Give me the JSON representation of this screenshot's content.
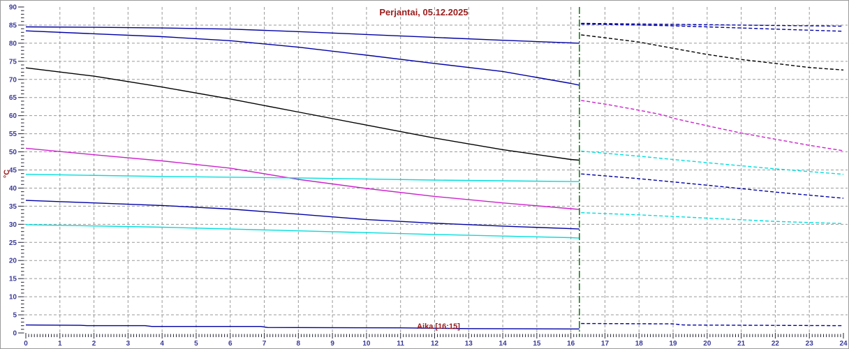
{
  "window": {
    "title": "Perjantai, 05.12.2025"
  },
  "colors": {
    "heading": "#9B1B1B",
    "axis_text": "#3A3A99",
    "tick": "#222233",
    "grid": "#9A9A9A",
    "navy": "#0000A5",
    "black": "#000000",
    "magenta": "#CC22CC",
    "cyan": "#00DEDE",
    "time_marker_green": "#1E7A1E",
    "border": "#999999",
    "background": "#FFFFFF"
  },
  "chart_data": {
    "type": "line",
    "title": "Perjantai, 05.12.2025",
    "xlabel": "",
    "ylabel": "°C",
    "x_axis": {
      "min": 0,
      "max": 24,
      "major_step": 1,
      "minor_step_minutes": 5,
      "tick_labels": [
        0,
        1,
        2,
        3,
        4,
        5,
        6,
        7,
        8,
        9,
        10,
        11,
        12,
        13,
        14,
        15,
        16,
        17,
        18,
        19,
        20,
        21,
        22,
        23,
        24
      ]
    },
    "y_axis": {
      "label": "°C",
      "min": 0,
      "max": 90,
      "major_step": 5,
      "minor_step": 1
    },
    "grid": true,
    "legend": false,
    "time_marker": {
      "label": "Aika [16:15]",
      "x": 16.25
    },
    "series": [
      {
        "name": "navy-upper-solid",
        "color": "navy",
        "style": "solid",
        "points": [
          [
            0,
            84.5
          ],
          [
            2,
            84.4
          ],
          [
            4,
            84.2
          ],
          [
            6,
            83.9
          ],
          [
            8,
            83.2
          ],
          [
            10,
            82.4
          ],
          [
            12,
            81.6
          ],
          [
            14,
            80.8
          ],
          [
            16,
            80.1
          ],
          [
            16.25,
            80.0
          ]
        ]
      },
      {
        "name": "navy-second-solid",
        "color": "navy",
        "style": "solid",
        "points": [
          [
            0,
            83.4
          ],
          [
            2,
            82.6
          ],
          [
            4,
            81.8
          ],
          [
            6,
            80.7
          ],
          [
            8,
            78.9
          ],
          [
            10,
            76.7
          ],
          [
            12,
            74.4
          ],
          [
            14,
            72.2
          ],
          [
            16,
            68.9
          ],
          [
            16.25,
            68.4
          ]
        ]
      },
      {
        "name": "black-solid",
        "color": "black",
        "style": "solid",
        "points": [
          [
            0,
            73.2
          ],
          [
            2,
            70.9
          ],
          [
            4,
            67.9
          ],
          [
            6,
            64.6
          ],
          [
            8,
            61.0
          ],
          [
            10,
            57.4
          ],
          [
            12,
            53.8
          ],
          [
            14,
            50.6
          ],
          [
            16,
            47.9
          ],
          [
            16.25,
            47.7
          ]
        ]
      },
      {
        "name": "magenta-solid",
        "color": "magenta",
        "style": "solid",
        "points": [
          [
            0,
            51.0
          ],
          [
            2,
            49.2
          ],
          [
            4,
            47.5
          ],
          [
            6,
            45.5
          ],
          [
            8,
            42.4
          ],
          [
            10,
            39.9
          ],
          [
            12,
            37.7
          ],
          [
            14,
            35.9
          ],
          [
            16,
            34.3
          ],
          [
            16.25,
            34.1
          ]
        ]
      },
      {
        "name": "cyan-upper-solid",
        "color": "cyan",
        "style": "solid",
        "points": [
          [
            0,
            43.8
          ],
          [
            4,
            43.2
          ],
          [
            8,
            42.8
          ],
          [
            12,
            42.2
          ],
          [
            16,
            41.8
          ],
          [
            16.25,
            41.8
          ]
        ]
      },
      {
        "name": "navy-lower-solid",
        "color": "navy",
        "style": "solid",
        "points": [
          [
            0,
            36.6
          ],
          [
            2,
            35.9
          ],
          [
            4,
            35.2
          ],
          [
            6,
            34.2
          ],
          [
            8,
            32.8
          ],
          [
            10,
            31.3
          ],
          [
            12,
            30.3
          ],
          [
            14,
            29.5
          ],
          [
            16,
            28.8
          ],
          [
            16.25,
            28.7
          ]
        ]
      },
      {
        "name": "cyan-lower-solid",
        "color": "cyan",
        "style": "solid",
        "points": [
          [
            0,
            29.9
          ],
          [
            4,
            29.2
          ],
          [
            8,
            28.2
          ],
          [
            12,
            27.2
          ],
          [
            16,
            26.3
          ],
          [
            16.25,
            26.2
          ]
        ]
      },
      {
        "name": "navy-bottom-solid",
        "color": "navy",
        "style": "solid",
        "points": [
          [
            0,
            2.2
          ],
          [
            1.6,
            2.1
          ],
          [
            1.8,
            2.0
          ],
          [
            3.5,
            2.0
          ],
          [
            3.7,
            1.8
          ],
          [
            6.9,
            1.8
          ],
          [
            7.1,
            1.5
          ],
          [
            11,
            1.4
          ],
          [
            13,
            1.2
          ],
          [
            16.25,
            1.1
          ]
        ]
      },
      {
        "name": "navy-upper-dashed",
        "color": "navy",
        "style": "dashed",
        "points": [
          [
            16.3,
            85.5
          ],
          [
            18,
            85.3
          ],
          [
            20,
            85.1
          ],
          [
            22,
            84.9
          ],
          [
            24,
            84.7
          ]
        ]
      },
      {
        "name": "navy-second-dashed",
        "color": "navy",
        "style": "dashed",
        "points": [
          [
            16.3,
            85.3
          ],
          [
            18,
            85.0
          ],
          [
            19,
            84.8
          ],
          [
            20,
            84.5
          ],
          [
            22,
            83.9
          ],
          [
            24,
            83.3
          ]
        ]
      },
      {
        "name": "black-dashed",
        "color": "black",
        "style": "dashed",
        "points": [
          [
            16.3,
            82.3
          ],
          [
            17,
            81.5
          ],
          [
            18,
            80.3
          ],
          [
            19,
            78.6
          ],
          [
            20,
            76.9
          ],
          [
            21,
            75.5
          ],
          [
            22,
            74.4
          ],
          [
            23,
            73.3
          ],
          [
            24,
            72.6
          ]
        ]
      },
      {
        "name": "magenta-dashed",
        "color": "magenta",
        "style": "dashed",
        "points": [
          [
            16.3,
            64.2
          ],
          [
            17,
            63.2
          ],
          [
            18,
            61.5
          ],
          [
            18.7,
            60.2
          ],
          [
            19,
            59.3
          ],
          [
            20,
            57.2
          ],
          [
            21,
            55.2
          ],
          [
            22,
            53.5
          ],
          [
            23,
            51.8
          ],
          [
            24,
            50.3
          ]
        ]
      },
      {
        "name": "cyan-upper-dashed",
        "color": "cyan",
        "style": "dashed",
        "points": [
          [
            16.3,
            50.2
          ],
          [
            18,
            48.8
          ],
          [
            20,
            47.0
          ],
          [
            22,
            45.3
          ],
          [
            24,
            43.8
          ]
        ]
      },
      {
        "name": "navy-lower-dashed",
        "color": "navy",
        "style": "dashed",
        "points": [
          [
            16.3,
            43.9
          ],
          [
            18,
            42.6
          ],
          [
            20,
            40.8
          ],
          [
            22,
            38.9
          ],
          [
            24,
            37.2
          ]
        ]
      },
      {
        "name": "cyan-lower-dashed",
        "color": "cyan",
        "style": "dashed",
        "points": [
          [
            16.3,
            33.2
          ],
          [
            18,
            32.6
          ],
          [
            20,
            31.7
          ],
          [
            22,
            30.8
          ],
          [
            24,
            30.2
          ]
        ]
      },
      {
        "name": "navy-bottom-dashed",
        "color": "navy",
        "style": "dashed",
        "points": [
          [
            16.3,
            2.6
          ],
          [
            19,
            2.5
          ],
          [
            19.3,
            2.2
          ],
          [
            24,
            2.0
          ]
        ]
      }
    ]
  }
}
